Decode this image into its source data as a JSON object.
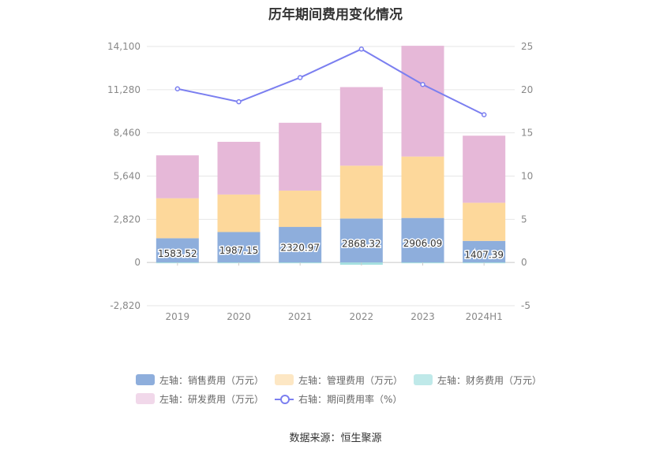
{
  "title": "历年期间费用变化情况",
  "source": "数据来源：恒生聚源",
  "legend": [
    {
      "label": "左轴：销售费用（万元）",
      "color": "#8eaedc"
    },
    {
      "label": "左轴：管理费用（万元）",
      "color": "#fdd89b"
    },
    {
      "label": "左轴：财务费用（万元）",
      "color": "#a5e0e0"
    },
    {
      "label": "左轴：研发费用（万元）",
      "color": "#e6b8d8"
    },
    {
      "label": "右轴：期间费用率（%）",
      "color": "#7b7ff0"
    }
  ],
  "chart_data": {
    "type": "bar",
    "stacked": true,
    "categories": [
      "2019",
      "2020",
      "2021",
      "2022",
      "2023",
      "2024H1"
    ],
    "y_left": {
      "ticks": [
        "14,100",
        "11,280",
        "8,460",
        "5,640",
        "2,820",
        "0",
        "-2,820"
      ],
      "lim": [
        -2820,
        14100
      ]
    },
    "y_right": {
      "ticks": [
        "25",
        "20",
        "15",
        "10",
        "5",
        "0",
        "-5"
      ],
      "lim": [
        -5,
        25
      ]
    },
    "series": [
      {
        "name": "左轴：销售费用（万元）",
        "color": "#8eaedc",
        "values": [
          1583.52,
          1987.15,
          2320.97,
          2868.32,
          2906.09,
          1407.39
        ],
        "labels": [
          "1583.52",
          "1987.15",
          "2320.97",
          "2868.32",
          "2906.09",
          "1407.39"
        ]
      },
      {
        "name": "左轴：管理费用（万元）",
        "color": "#fdd89b",
        "values": [
          2610,
          2450,
          2370,
          3450,
          4010,
          2490
        ]
      },
      {
        "name": "左轴：财务费用（万元）",
        "color": "#a5e0e0",
        "values": [
          -30,
          -40,
          -20,
          -150,
          -20,
          -20
        ]
      },
      {
        "name": "左轴：研发费用（万元）",
        "color": "#e6b8d8",
        "values": [
          2800,
          3440,
          4430,
          5130,
          7230,
          4380
        ]
      },
      {
        "name": "右轴：期间费用率（%）",
        "color": "#7b7ff0",
        "axis": "right",
        "kind": "line",
        "values": [
          20.1,
          18.6,
          21.4,
          24.7,
          20.6,
          17.1
        ]
      }
    ],
    "grid": true,
    "legend_position": "bottom"
  }
}
